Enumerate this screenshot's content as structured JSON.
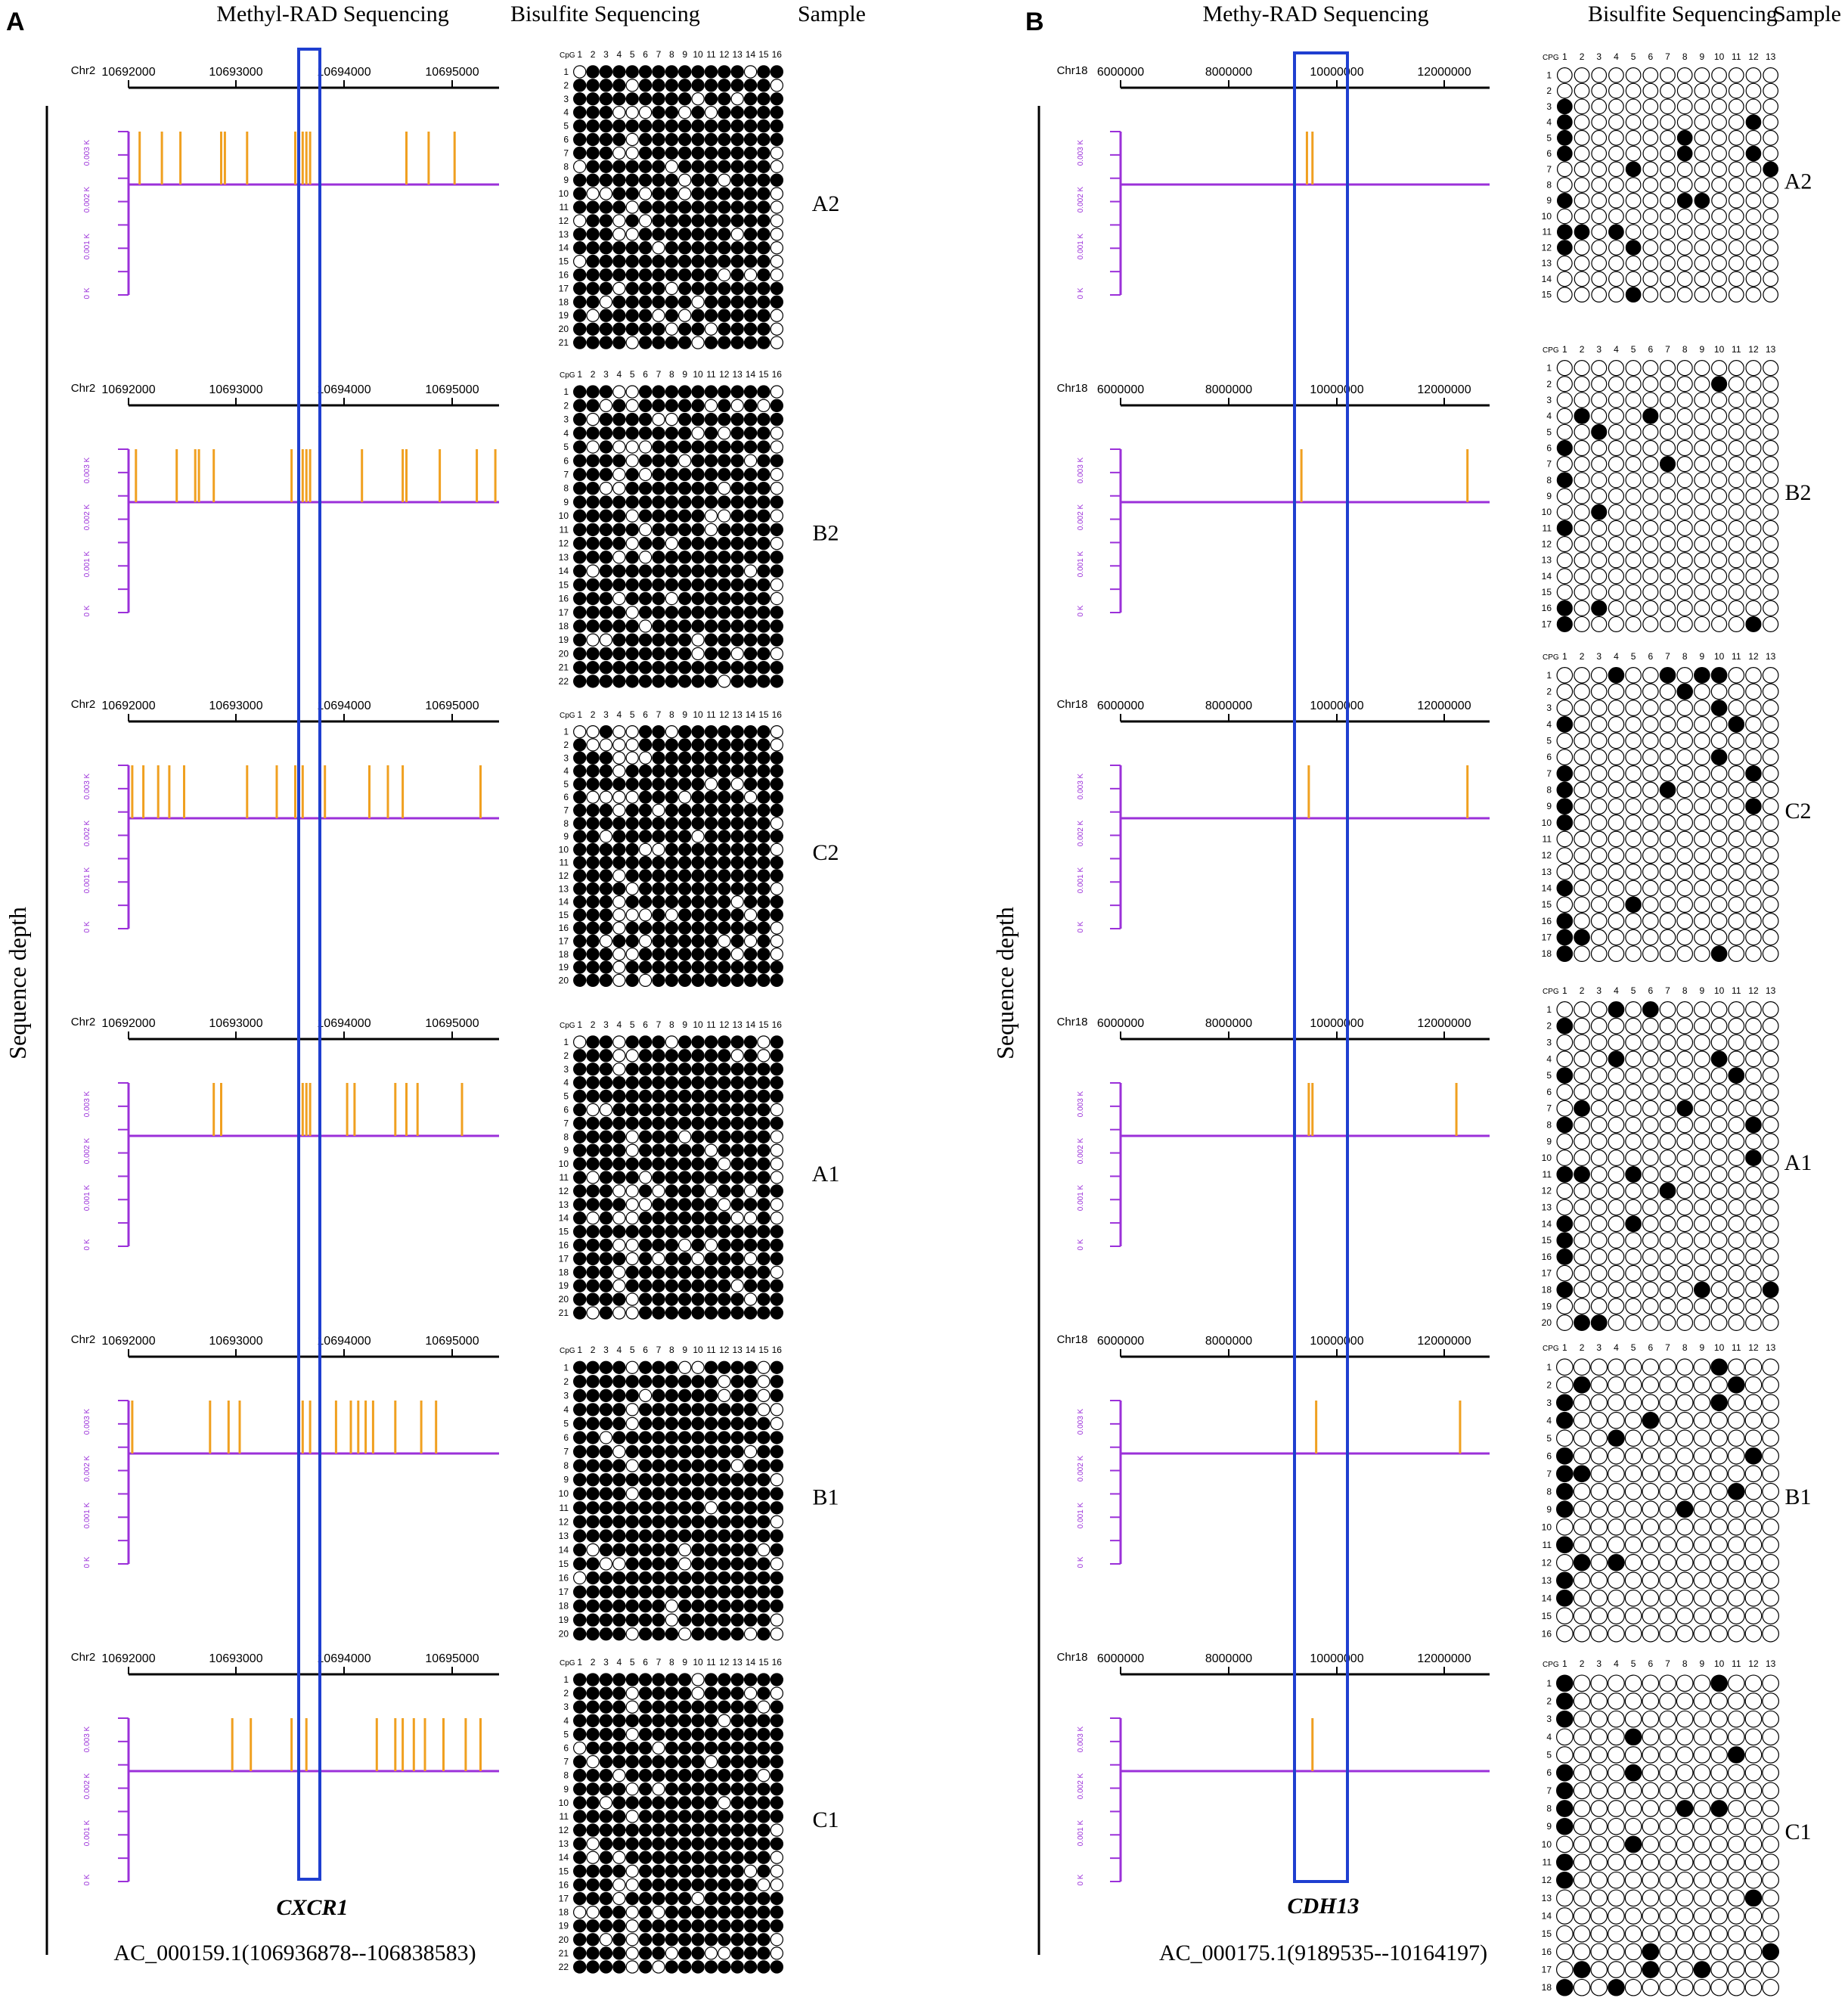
{
  "panels": [
    {
      "key": "A",
      "letter": "A",
      "header_mr": "Methyl-RAD Sequencing",
      "header_bs": "Bisulfite Sequencing",
      "header_sample": "Sample",
      "ylabel": "Sequence depth",
      "chrom": "Chr2",
      "ticks": [
        "10692000",
        "10693000",
        "10694000",
        "10695000"
      ],
      "depth_labels": [
        "0.003 K",
        "0.002 K",
        "0.001 K",
        "0 K"
      ],
      "gene": "CXCR1",
      "accession": "AC_000159.1(106936878--106838583)",
      "cpg_header": "CpG",
      "cpg_columns": 16,
      "line_color": "#9b30d9",
      "bar_color": "#f0a020",
      "box_color": "#1f3fd0",
      "samples": [
        {
          "name": "A2",
          "reads": 21,
          "peaks": [
            0.03,
            0.09,
            0.14,
            0.25,
            0.26,
            0.32,
            0.45,
            0.46,
            0.47,
            0.48,
            0.49,
            0.75,
            0.81,
            0.88
          ]
        },
        {
          "name": "B2",
          "reads": 22,
          "peaks": [
            0.02,
            0.13,
            0.18,
            0.19,
            0.23,
            0.44,
            0.47,
            0.48,
            0.49,
            0.63,
            0.74,
            0.75,
            0.84,
            0.94,
            0.99
          ]
        },
        {
          "name": "C2",
          "reads": 20,
          "peaks": [
            0.01,
            0.04,
            0.08,
            0.11,
            0.15,
            0.32,
            0.4,
            0.45,
            0.47,
            0.53,
            0.65,
            0.7,
            0.74,
            0.95
          ]
        },
        {
          "name": "A1",
          "reads": 21,
          "peaks": [
            0.23,
            0.25,
            0.47,
            0.48,
            0.49,
            0.59,
            0.61,
            0.72,
            0.75,
            0.78,
            0.9
          ]
        },
        {
          "name": "B1",
          "reads": 20,
          "peaks": [
            0.01,
            0.22,
            0.27,
            0.3,
            0.47,
            0.49,
            0.56,
            0.6,
            0.62,
            0.64,
            0.66,
            0.72,
            0.79,
            0.83
          ]
        },
        {
          "name": "C1",
          "reads": 22,
          "peaks": [
            0.28,
            0.33,
            0.44,
            0.46,
            0.48,
            0.67,
            0.72,
            0.74,
            0.77,
            0.8,
            0.85,
            0.91,
            0.95
          ]
        }
      ]
    },
    {
      "key": "B",
      "letter": "B",
      "header_mr": "Methy-RAD Sequencing",
      "header_bs": "Bisulfite Sequencing",
      "header_sample": "Sample",
      "ylabel": "Sequence depth",
      "chrom": "Chr18",
      "ticks": [
        "6000000",
        "8000000",
        "10000000",
        "12000000"
      ],
      "depth_labels": [
        "0.003 K",
        "0.002 K",
        "0.001 K",
        "0 K"
      ],
      "gene": "CDH13",
      "accession": "AC_000175.1(9189535--10164197)",
      "cpg_header": "CPG",
      "cpg_columns": 13,
      "line_color": "#9b30d9",
      "bar_color": "#f0a020",
      "box_color": "#1f3fd0",
      "samples": [
        {
          "name": "A2",
          "reads": 15,
          "peaks": [
            0.505,
            0.52
          ]
        },
        {
          "name": "B2",
          "reads": 17,
          "peaks": [
            0.49,
            0.94
          ]
        },
        {
          "name": "C2",
          "reads": 18,
          "peaks": [
            0.51,
            0.94
          ]
        },
        {
          "name": "A1",
          "reads": 20,
          "peaks": [
            0.51,
            0.52,
            0.91
          ]
        },
        {
          "name": "B1",
          "reads": 16,
          "peaks": [
            0.53,
            0.92
          ]
        },
        {
          "name": "C1",
          "reads": 18,
          "peaks": [
            0.52
          ]
        }
      ]
    }
  ]
}
